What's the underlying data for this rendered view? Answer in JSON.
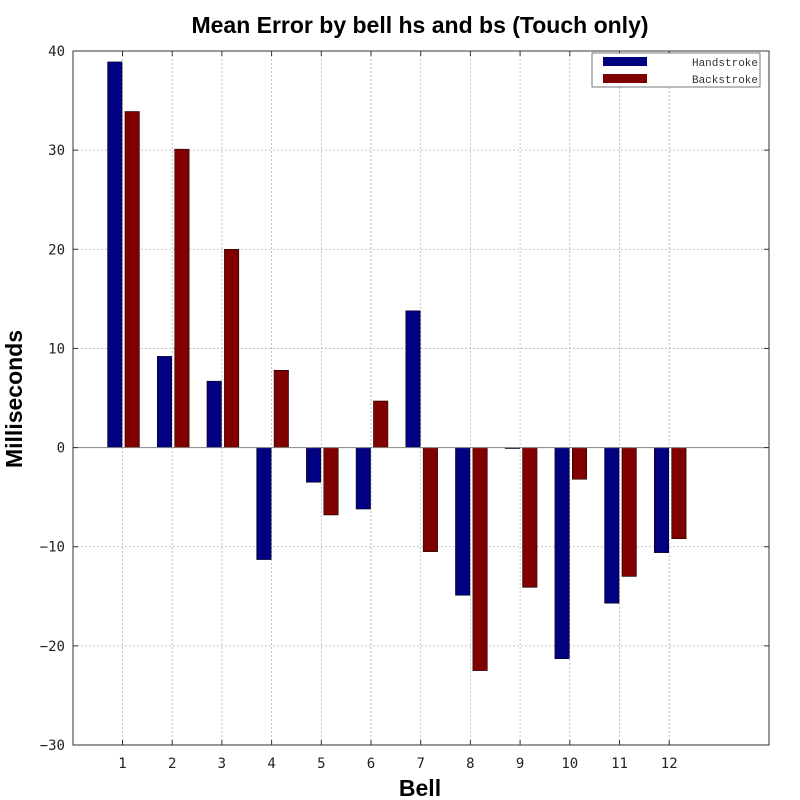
{
  "chart_data": {
    "type": "bar",
    "title": "Mean Error by bell hs and bs (Touch only)",
    "xlabel": "Bell",
    "ylabel": "Milliseconds",
    "categories": [
      "1",
      "2",
      "3",
      "4",
      "5",
      "6",
      "7",
      "8",
      "9",
      "10",
      "11",
      "12"
    ],
    "series": [
      {
        "name": "Handstroke",
        "color": "#000080",
        "values": [
          38.9,
          9.2,
          6.7,
          -11.3,
          -3.5,
          -6.2,
          13.8,
          -14.9,
          -0.1,
          -21.3,
          -15.7,
          -10.6
        ]
      },
      {
        "name": "Backstroke",
        "color": "#800000",
        "values": [
          33.9,
          30.1,
          20.0,
          7.8,
          -6.8,
          4.7,
          -10.5,
          -22.5,
          -14.1,
          -3.2,
          -13.0,
          -9.2
        ]
      }
    ],
    "ylim": [
      -30,
      40
    ],
    "yticks": [
      -30,
      -20,
      -10,
      0,
      10,
      20,
      30,
      40
    ],
    "ytick_labels": [
      "−30",
      "−20",
      "−10",
      "0",
      "10",
      "20",
      "30",
      "40"
    ],
    "grid": true,
    "legend_position": "top-right"
  }
}
